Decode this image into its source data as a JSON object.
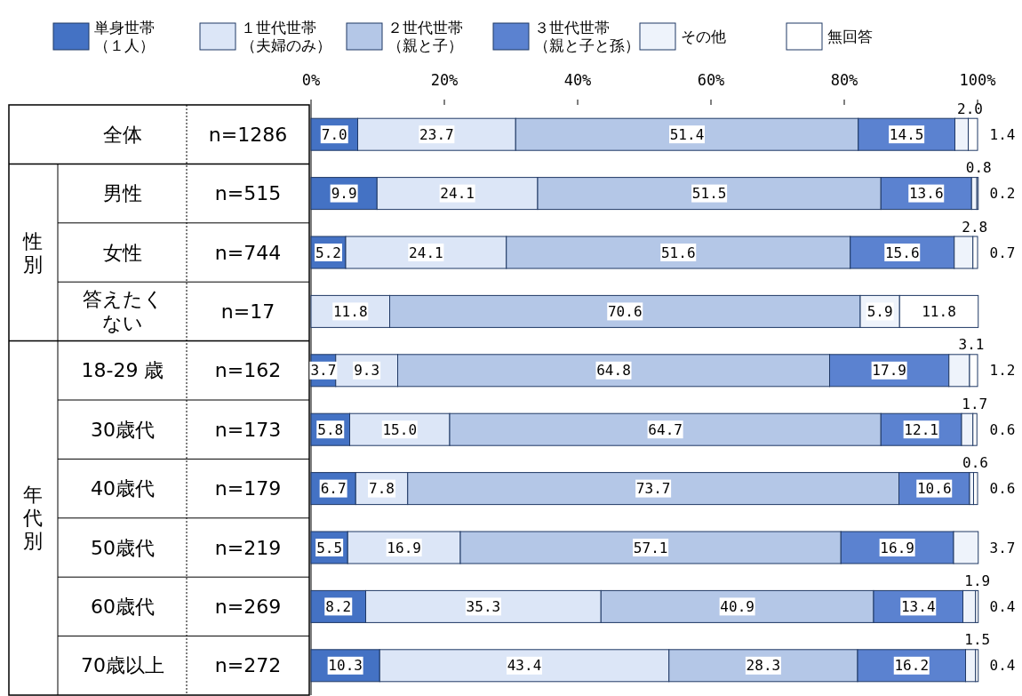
{
  "chart_data": {
    "type": "bar",
    "orientation": "horizontal",
    "stacked": true,
    "categories": [
      "全体",
      "男性",
      "女性",
      "答えたくない",
      "18-29 歳",
      "30歳代",
      "40歳代",
      "50歳代",
      "60歳代",
      "70歳以上"
    ],
    "series": [
      {
        "name": "単身世帯（１人）",
        "color": "#4472c4",
        "values": [
          7.0,
          9.9,
          5.2,
          0,
          3.7,
          5.8,
          6.7,
          5.5,
          8.2,
          10.3
        ],
        "value_labels": [
          "7.0",
          "9.9",
          "5.2",
          null,
          "3.7",
          "5.8",
          "6.7",
          "5.5",
          "8.2",
          "10.3"
        ]
      },
      {
        "name": "１世代世帯（夫婦のみ）",
        "color": "#dce6f7",
        "values": [
          23.7,
          24.1,
          24.1,
          11.8,
          9.3,
          15.0,
          7.8,
          16.9,
          35.3,
          43.4
        ],
        "value_labels": [
          "23.7",
          "24.1",
          "24.1",
          "11.8",
          "9.3",
          "15.0",
          "7.8",
          "16.9",
          "35.3",
          "43.4"
        ]
      },
      {
        "name": "２世代世帯（親と子）",
        "color": "#b4c7e7",
        "values": [
          51.4,
          51.5,
          51.6,
          70.6,
          64.8,
          64.7,
          73.7,
          57.1,
          40.9,
          28.3
        ],
        "value_labels": [
          "51.4",
          "51.5",
          "51.6",
          "70.6",
          "64.8",
          "64.7",
          "73.7",
          "57.1",
          "40.9",
          "28.3"
        ]
      },
      {
        "name": "３世代世帯（親と子と孫）",
        "color": "#5b82d0",
        "values": [
          14.5,
          13.6,
          15.6,
          0,
          17.9,
          12.1,
          10.6,
          16.9,
          13.4,
          16.2
        ],
        "value_labels": [
          "14.5",
          "13.6",
          "15.6",
          null,
          "17.9",
          "12.1",
          "10.6",
          "16.9",
          "13.4",
          "16.2"
        ]
      },
      {
        "name": "その他",
        "color": "#eef3fb",
        "values": [
          2.0,
          0.8,
          2.8,
          5.9,
          3.1,
          1.7,
          0.6,
          3.7,
          1.9,
          1.5
        ],
        "value_labels": [
          "2.0",
          "0.8",
          "2.8",
          "5.9",
          "3.1",
          "1.7",
          "0.6",
          "3.7",
          "1.9",
          "1.5"
        ]
      },
      {
        "name": "無回答",
        "color": "#ffffff",
        "values": [
          1.4,
          0.2,
          0.7,
          11.8,
          1.2,
          0.6,
          0.6,
          0,
          0.4,
          0.4
        ],
        "value_labels": [
          "1.4",
          "0.2",
          "0.7",
          "11.8",
          "1.2",
          "0.6",
          "0.6",
          null,
          "0.4",
          "0.4"
        ]
      }
    ],
    "xlim": [
      0,
      100
    ],
    "xticks": [
      {
        "value": 0,
        "label": "0%"
      },
      {
        "value": 20,
        "label": "20%"
      },
      {
        "value": 40,
        "label": "40%"
      },
      {
        "value": 60,
        "label": "60%"
      },
      {
        "value": 80,
        "label": "80%"
      },
      {
        "value": 100,
        "label": "100%"
      }
    ],
    "annotations": [
      "n=1286",
      "n=515",
      "n=744",
      "n=17",
      "n=162",
      "n=173",
      "n=179",
      "n=219",
      "n=269",
      "n=272",
      "性別",
      "年代別"
    ],
    "legend": "top",
    "grid": false
  }
}
